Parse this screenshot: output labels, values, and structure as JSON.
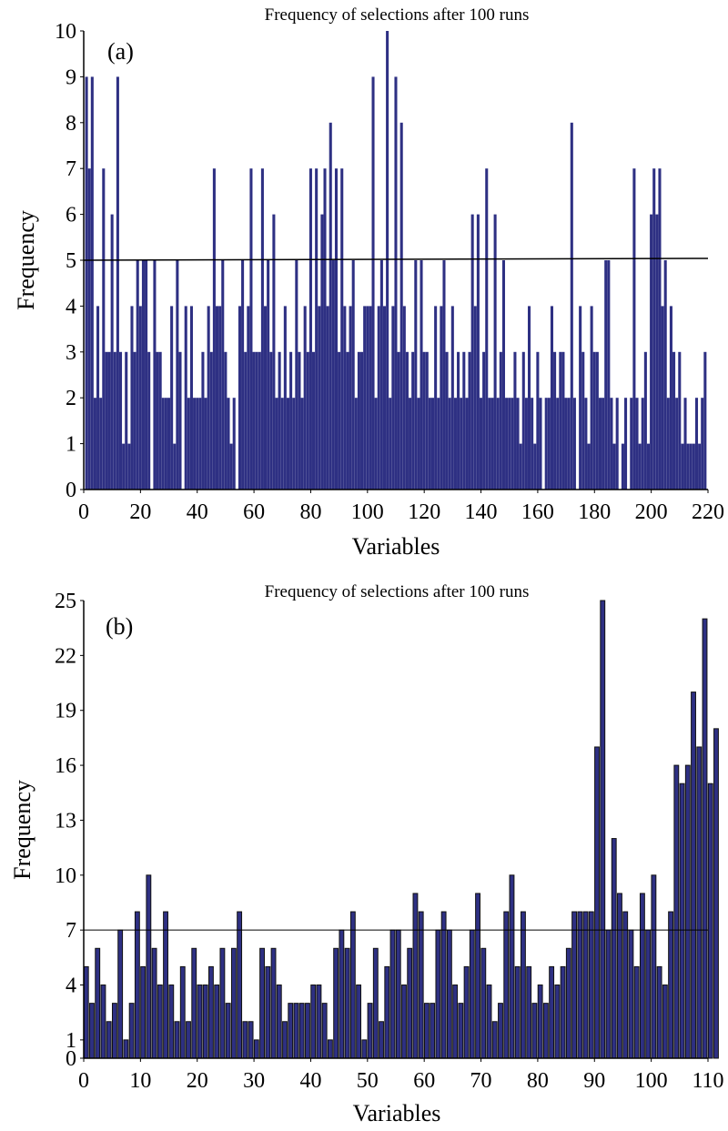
{
  "chart_data": [
    {
      "type": "bar",
      "panel_label": "(a)",
      "title": "Frequency of selections after 100 runs",
      "xlabel": "Variables",
      "ylabel": "Frequency",
      "xlim": [
        0,
        220
      ],
      "ylim": [
        0,
        10
      ],
      "xticks": [
        0,
        20,
        40,
        60,
        80,
        100,
        120,
        140,
        160,
        180,
        200,
        220
      ],
      "yticks": [
        0,
        1,
        2,
        3,
        4,
        5,
        6,
        7,
        8,
        9,
        10
      ],
      "threshold": 5,
      "color": "#2e3083",
      "bar_border": "none",
      "x_start": 1,
      "values": [
        9,
        7,
        9,
        2,
        4,
        2,
        7,
        3,
        3,
        6,
        3,
        9,
        3,
        1,
        3,
        1,
        4,
        3,
        5,
        4,
        5,
        5,
        3,
        0,
        5,
        3,
        3,
        2,
        2,
        2,
        4,
        1,
        5,
        3,
        0,
        4,
        2,
        4,
        2,
        2,
        2,
        3,
        2,
        4,
        3,
        7,
        4,
        4,
        5,
        3,
        2,
        1,
        2,
        0,
        4,
        5,
        3,
        4,
        7,
        3,
        3,
        3,
        7,
        4,
        5,
        3,
        6,
        2,
        3,
        2,
        4,
        2,
        3,
        2,
        5,
        3,
        2,
        4,
        3,
        7,
        3,
        7,
        4,
        6,
        7,
        4,
        8,
        5,
        7,
        3,
        7,
        4,
        3,
        4,
        5,
        2,
        3,
        3,
        4,
        4,
        4,
        9,
        2,
        4,
        5,
        4,
        10,
        2,
        4,
        9,
        3,
        8,
        4,
        3,
        2,
        3,
        5,
        2,
        5,
        3,
        3,
        2,
        2,
        4,
        2,
        4,
        5,
        3,
        2,
        4,
        2,
        3,
        2,
        3,
        2,
        3,
        6,
        4,
        6,
        2,
        3,
        7,
        2,
        2,
        6,
        2,
        3,
        5,
        2,
        2,
        2,
        3,
        2,
        1,
        3,
        2,
        4,
        2,
        1,
        3,
        2,
        0,
        2,
        2,
        4,
        3,
        2,
        3,
        3,
        2,
        2,
        8,
        2,
        0,
        4,
        3,
        2,
        1,
        4,
        3,
        3,
        2,
        2,
        5,
        5,
        2,
        1,
        2,
        0,
        1,
        2,
        0,
        2,
        7,
        2,
        1,
        2,
        3,
        1,
        6,
        7,
        6,
        7,
        4,
        5,
        2,
        4,
        3,
        2,
        3,
        1,
        2,
        1,
        1,
        1,
        2,
        1,
        2,
        3
      ]
    },
    {
      "type": "bar",
      "panel_label": "(b)",
      "title": "Frequency of selections after 100 runs",
      "xlabel": "Variables",
      "ylabel": "Frequency",
      "xlim": [
        0,
        110
      ],
      "ylim": [
        0,
        25
      ],
      "xticks": [
        0,
        10,
        20,
        30,
        40,
        50,
        60,
        70,
        80,
        90,
        100,
        110
      ],
      "yticks": [
        0,
        1,
        4,
        7,
        10,
        13,
        16,
        19,
        22,
        25
      ],
      "threshold": 7,
      "color": "#2e3083",
      "bar_border": "#111111",
      "x_start": 0,
      "values": [
        5,
        3,
        6,
        4,
        2,
        3,
        7,
        1,
        3,
        8,
        5,
        10,
        6,
        4,
        8,
        4,
        2,
        5,
        2,
        6,
        4,
        4,
        5,
        4,
        6,
        3,
        6,
        8,
        2,
        2,
        1,
        6,
        5,
        6,
        4,
        2,
        3,
        3,
        3,
        3,
        4,
        4,
        3,
        1,
        6,
        7,
        6,
        8,
        4,
        1,
        3,
        6,
        2,
        5,
        7,
        7,
        4,
        6,
        9,
        8,
        3,
        3,
        7,
        8,
        7,
        4,
        3,
        5,
        7,
        9,
        6,
        4,
        2,
        3,
        8,
        10,
        5,
        8,
        5,
        3,
        4,
        3,
        5,
        4,
        5,
        6,
        8,
        8,
        8,
        8,
        17,
        25,
        7,
        12,
        9,
        8,
        7,
        5,
        9,
        7,
        10,
        5,
        4,
        8,
        16,
        15,
        16,
        20,
        17,
        24,
        15,
        18
      ]
    }
  ]
}
